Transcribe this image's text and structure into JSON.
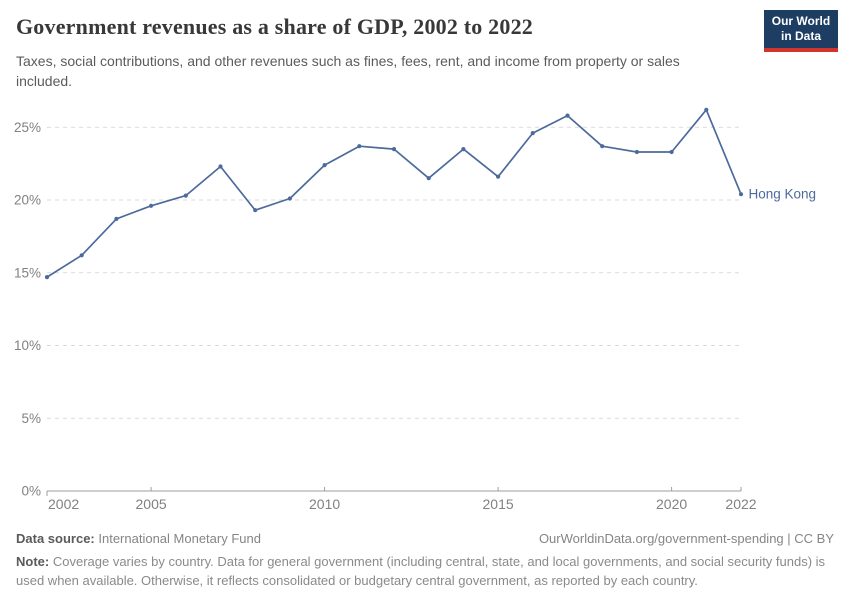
{
  "header": {
    "title": "Government revenues as a share of GDP, 2002 to 2022",
    "subtitle": "Taxes, social contributions, and other revenues such as fines, fees, rent, and income from property or sales included.",
    "logo": {
      "line1": "Our World",
      "line2": "in Data"
    }
  },
  "colors": {
    "navy": "#1d3d63",
    "red": "#d0342c",
    "line": "#4C6A9C",
    "grid": "#dadada",
    "axis": "#9e9e9e",
    "tick_label": "#818181"
  },
  "chart_data": {
    "type": "line",
    "title": "Government revenues as a share of GDP, 2002 to 2022",
    "xlabel": "",
    "ylabel": "",
    "x": [
      2002,
      2003,
      2004,
      2005,
      2006,
      2007,
      2008,
      2009,
      2010,
      2011,
      2012,
      2013,
      2014,
      2015,
      2016,
      2017,
      2018,
      2019,
      2020,
      2021,
      2022
    ],
    "series": [
      {
        "name": "Hong Kong",
        "color": "#4C6A9C",
        "values": [
          14.7,
          16.2,
          18.7,
          19.6,
          20.3,
          22.3,
          19.3,
          20.1,
          22.4,
          23.7,
          23.5,
          21.5,
          23.5,
          21.6,
          24.6,
          25.8,
          23.7,
          23.3,
          23.3,
          26.2,
          20.4
        ]
      }
    ],
    "xlim": [
      2002,
      2022
    ],
    "ylim": [
      0,
      27.3
    ],
    "xticks": [
      2002,
      2005,
      2010,
      2015,
      2020,
      2022
    ],
    "yticks": [
      0,
      5,
      10,
      15,
      20,
      25
    ],
    "ytick_suffix": "%",
    "grid": "horizontal-dashed",
    "legend": "end-of-line-label"
  },
  "footer": {
    "source_label": "Data source:",
    "source_value": "International Monetary Fund",
    "link": "OurWorldinData.org/government-spending | CC BY",
    "note_label": "Note:",
    "note_text": "Coverage varies by country. Data for general government (including central, state, and local governments, and social security funds) is used when available. Otherwise, it reflects consolidated or budgetary central government, as reported by each country."
  }
}
